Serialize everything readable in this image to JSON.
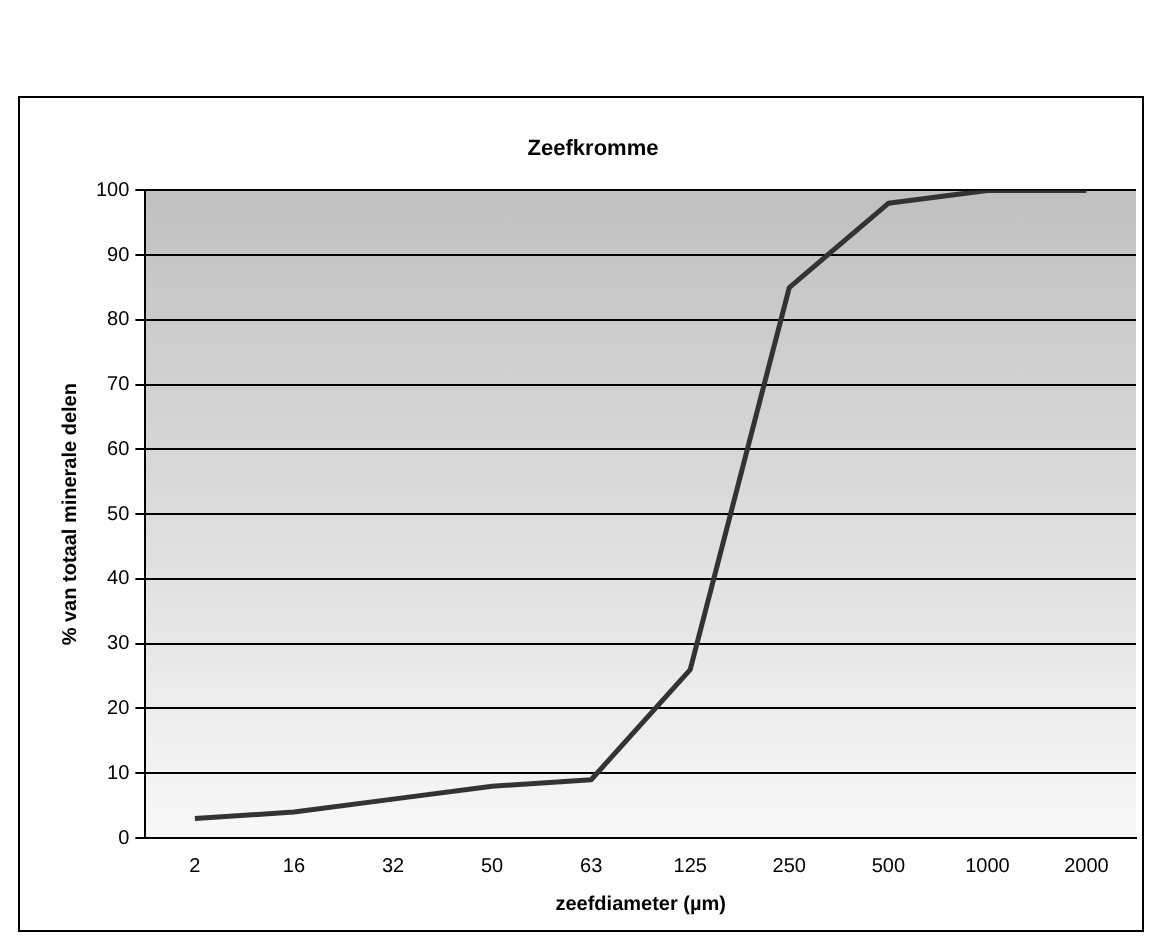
{
  "chart_data": {
    "type": "line",
    "title": "Zeefkromme",
    "xlabel": "zeefdiameter (µm)",
    "ylabel": "% van totaal minerale delen",
    "categories": [
      "2",
      "16",
      "32",
      "50",
      "63",
      "125",
      "250",
      "500",
      "1000",
      "2000"
    ],
    "series": [
      {
        "color": "#333333",
        "values": [
          3,
          4,
          6,
          8,
          9,
          26,
          85,
          98,
          100,
          100
        ]
      }
    ],
    "ylim": [
      0,
      100
    ],
    "yticks": [
      0,
      10,
      20,
      30,
      40,
      50,
      60,
      70,
      80,
      90,
      100
    ],
    "grid": "y",
    "legend": false,
    "marker": "none",
    "line_style": "solid"
  }
}
